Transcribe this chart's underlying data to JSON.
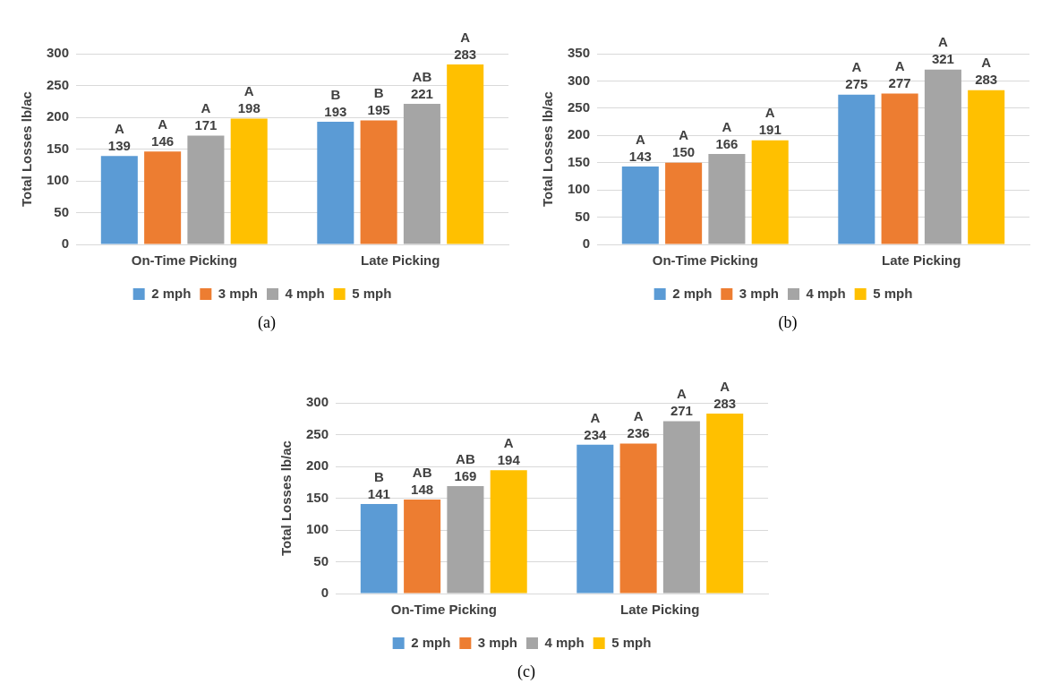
{
  "chart_data": [
    {
      "type": "bar",
      "ylabel": "Total Losses lb/ac",
      "categories": [
        "On-Time Picking",
        "Late Picking"
      ],
      "series": [
        {
          "name": "2 mph",
          "color": "#5b9bd5",
          "values": [
            139,
            193
          ]
        },
        {
          "name": "3 mph",
          "color": "#ed7d31",
          "values": [
            146,
            195
          ]
        },
        {
          "name": "4 mph",
          "color": "#a5a5a5",
          "values": [
            171,
            221
          ]
        },
        {
          "name": "5 mph",
          "color": "#ffc000",
          "values": [
            198,
            283
          ]
        }
      ],
      "ylim": [
        0,
        300
      ],
      "yticks": [
        0,
        50,
        100,
        150,
        200,
        250,
        300
      ],
      "grid": "y",
      "legend": "bottom",
      "data_labels": true,
      "annotations": [
        "A",
        "A",
        "A",
        "A",
        "B",
        "B",
        "AB",
        "A",
        "(a)"
      ]
    },
    {
      "type": "bar",
      "ylabel": "Total Losses lb/ac",
      "categories": [
        "On-Time Picking",
        "Late Picking"
      ],
      "series": [
        {
          "name": "2 mph",
          "color": "#5b9bd5",
          "values": [
            143,
            275
          ]
        },
        {
          "name": "3 mph",
          "color": "#ed7d31",
          "values": [
            150,
            277
          ]
        },
        {
          "name": "4 mph",
          "color": "#a5a5a5",
          "values": [
            166,
            321
          ]
        },
        {
          "name": "5 mph",
          "color": "#ffc000",
          "values": [
            191,
            283
          ]
        }
      ],
      "ylim": [
        0,
        350
      ],
      "yticks": [
        0,
        50,
        100,
        150,
        200,
        250,
        300,
        350
      ],
      "grid": "y",
      "legend": "bottom",
      "data_labels": true,
      "annotations": [
        "A",
        "A",
        "A",
        "A",
        "A",
        "A",
        "A",
        "A",
        "(b)"
      ]
    },
    {
      "type": "bar",
      "ylabel": "Total Losses lb/ac",
      "categories": [
        "On-Time Picking",
        "Late Picking"
      ],
      "series": [
        {
          "name": "2 mph",
          "color": "#5b9bd5",
          "values": [
            141,
            234
          ]
        },
        {
          "name": "3 mph",
          "color": "#ed7d31",
          "values": [
            148,
            236
          ]
        },
        {
          "name": "4 mph",
          "color": "#a5a5a5",
          "values": [
            169,
            271
          ]
        },
        {
          "name": "5 mph",
          "color": "#ffc000",
          "values": [
            194,
            283
          ]
        }
      ],
      "ylim": [
        0,
        300
      ],
      "yticks": [
        0,
        50,
        100,
        150,
        200,
        250,
        300
      ],
      "grid": "y",
      "legend": "bottom",
      "data_labels": true,
      "annotations": [
        "B",
        "AB",
        "AB",
        "A",
        "A",
        "A",
        "A",
        "A",
        "(c)"
      ]
    }
  ]
}
